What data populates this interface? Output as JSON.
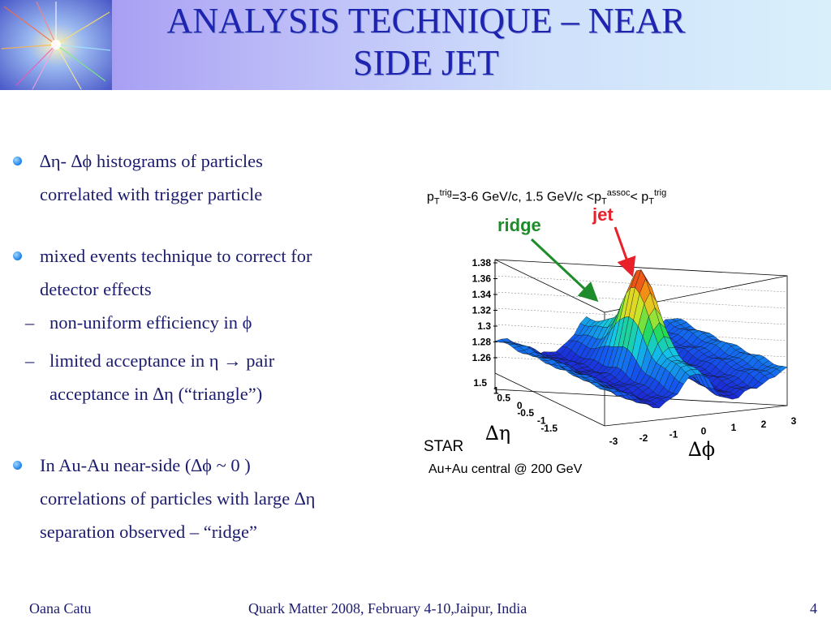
{
  "title_lines": [
    "ANALYSIS TECHNIQUE – NEAR",
    "SIDE JET"
  ],
  "bullets": [
    {
      "lines": [
        "∆η- ∆ϕ histograms of particles",
        "correlated with trigger particle"
      ]
    },
    {
      "lines": [
        "mixed events technique to correct for",
        "detector effects"
      ],
      "sub": [
        {
          "lines": [
            "non-uniform efficiency in ϕ"
          ]
        },
        {
          "lines": [
            "limited acceptance in η → pair",
            "acceptance in ∆η (“triangle”)"
          ]
        }
      ]
    },
    {
      "lines": [
        "In Au-Au near-side (∆ϕ ~ 0 )",
        "correlations of particles with large ∆η",
        "separation observed – “ridge”"
      ]
    }
  ],
  "figure": {
    "subtitle": {
      "p": "p",
      "T": "T",
      "trig": "trig",
      "range1": "=3-6 GeV/c, 1.5 GeV/c <p",
      "assoc": "assoc",
      "lt": "< p"
    },
    "ridge_label": "ridge",
    "jet_label": "jet",
    "z_ticks": [
      "1.38",
      "1.36",
      "1.34",
      "1.32",
      "1.3",
      "1.28",
      "1.26"
    ],
    "eta_ticks": [
      "1.5",
      "1",
      "0.5",
      "0",
      "-0.5",
      "-1",
      "-1.5"
    ],
    "phi_ticks": [
      "-3",
      "-2",
      "-1",
      "0",
      "1",
      "2",
      "3"
    ],
    "eta_axis_label": "∆η",
    "phi_axis_label": "∆ϕ",
    "experiment": "STAR",
    "system": "Au+Au central @ 200 GeV",
    "colors": {
      "ridge": "#1e8c2a",
      "jet": "#e8202a",
      "text": "#1c1c6e",
      "title": "#1f24b0"
    }
  },
  "footer": {
    "author": "Oana Catu",
    "conference": "Quark Matter 2008, February 4-10,Jaipur, India",
    "page": "4"
  }
}
